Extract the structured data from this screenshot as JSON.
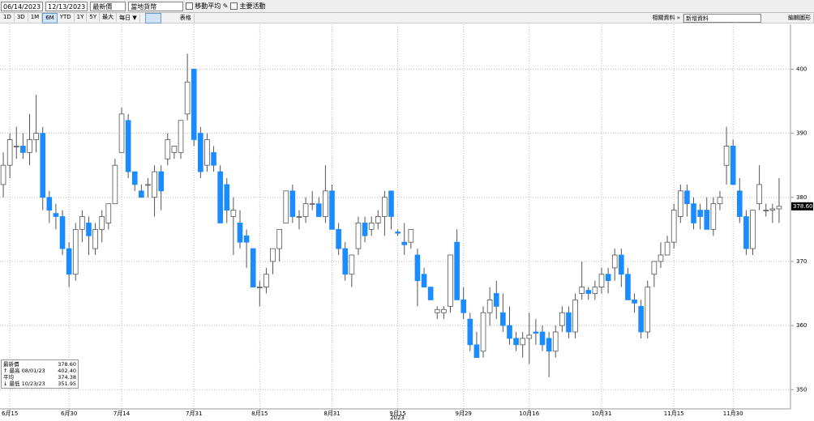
{
  "toolbar": {
    "start_date": "06/14/2023",
    "end_date": "12/13/2023",
    "field": "最新價",
    "currency": "當地貨幣",
    "options": [
      "移動平均",
      "主要活動"
    ],
    "periods": [
      "1D",
      "3D",
      "1M",
      "6M",
      "YTD",
      "1Y",
      "5Y",
      "最大"
    ],
    "frequency": "每日 ▼",
    "table": "表格",
    "related": "相關資料 »",
    "add_data": "新增資料",
    "edit": "編輯圖形"
  },
  "chart_data": {
    "type": "candlestick",
    "up_color": "#ffffff",
    "down_color": "#1a8cff",
    "grid": true,
    "ylim": [
      347,
      407
    ],
    "yticks": [
      350,
      360,
      370,
      380,
      390,
      400
    ],
    "xlim": [
      -0.5,
      118.5
    ],
    "xticks": [
      {
        "value": 1,
        "label": "6月15"
      },
      {
        "value": 10,
        "label": "6月30"
      },
      {
        "value": 18,
        "label": "7月14"
      },
      {
        "value": 29,
        "label": "7月31"
      },
      {
        "value": 39,
        "label": "8月15"
      },
      {
        "value": 50,
        "label": "8月31"
      },
      {
        "value": 60,
        "label": "9月15"
      },
      {
        "value": 70,
        "label": "9月29"
      },
      {
        "value": 80,
        "label": "10月16"
      },
      {
        "value": 91,
        "label": "10月31"
      },
      {
        "value": 102,
        "label": "11月15"
      },
      {
        "value": 111,
        "label": "11月30"
      }
    ],
    "year_label": "2023",
    "last_label": "378.60",
    "legend": [
      {
        "label": "最新價",
        "value": "378.60"
      },
      {
        "label": "↑ 最高 08/01/23",
        "value": "402.40"
      },
      {
        "label": "平均",
        "value": "374.38"
      },
      {
        "label": "↓ 最低 10/23/23",
        "value": "351.95"
      }
    ],
    "candles": [
      [
        382,
        387,
        380,
        385
      ],
      [
        385,
        390,
        383,
        389
      ],
      [
        388,
        391,
        386,
        388
      ],
      [
        388,
        390,
        386,
        387
      ],
      [
        387,
        393,
        385,
        389
      ],
      [
        389,
        396,
        387,
        390
      ],
      [
        390,
        391,
        378,
        380
      ],
      [
        380,
        381,
        376,
        378
      ],
      [
        377.5,
        379,
        375,
        377
      ],
      [
        377,
        378,
        371,
        372
      ],
      [
        372,
        373,
        366,
        368
      ],
      [
        368,
        376,
        367,
        375
      ],
      [
        375,
        378,
        373,
        377
      ],
      [
        376,
        377,
        371,
        374
      ],
      [
        372,
        376,
        371,
        375
      ],
      [
        375,
        378,
        373,
        377
      ],
      [
        376,
        379,
        375,
        379
      ],
      [
        379,
        386,
        379,
        385
      ],
      [
        387,
        394,
        387,
        393
      ],
      [
        392,
        393,
        383,
        384
      ],
      [
        384,
        384,
        381,
        382
      ],
      [
        381,
        382,
        380,
        380
      ],
      [
        382,
        383,
        380,
        382
      ],
      [
        380,
        385,
        377,
        384
      ],
      [
        384,
        385,
        378,
        381
      ],
      [
        386,
        390,
        385,
        389
      ],
      [
        387,
        388,
        386,
        388
      ],
      [
        387,
        392,
        386,
        392
      ],
      [
        393,
        402.4,
        392,
        398
      ],
      [
        400,
        400,
        388,
        389
      ],
      [
        390,
        391,
        383,
        384
      ],
      [
        385,
        390,
        384,
        389
      ],
      [
        387,
        388,
        384,
        385
      ],
      [
        384,
        385,
        376,
        376
      ],
      [
        382,
        383,
        376,
        378
      ],
      [
        377,
        380,
        371,
        378
      ],
      [
        376,
        378,
        372,
        373
      ],
      [
        374,
        375,
        369,
        373
      ],
      [
        372,
        372,
        366,
        366
      ],
      [
        366,
        367,
        363,
        366
      ],
      [
        366,
        369,
        365,
        368
      ],
      [
        370,
        372,
        368,
        372
      ],
      [
        372,
        375,
        370,
        375
      ],
      [
        376,
        381,
        376,
        381
      ],
      [
        381,
        382,
        376,
        377
      ],
      [
        377,
        378,
        375,
        377
      ],
      [
        377,
        380,
        376,
        379
      ],
      [
        379,
        381,
        378,
        379
      ],
      [
        379,
        380,
        377,
        377
      ],
      [
        377,
        385,
        376,
        381
      ],
      [
        381,
        382,
        375,
        375
      ],
      [
        375,
        376,
        371,
        372
      ],
      [
        372,
        373,
        367,
        368
      ],
      [
        368,
        371,
        366,
        371
      ],
      [
        372,
        377,
        371,
        376
      ],
      [
        376,
        377,
        373,
        374
      ],
      [
        375,
        377,
        374,
        376
      ],
      [
        376,
        378,
        375,
        377
      ],
      [
        377,
        381,
        374,
        380
      ],
      [
        381,
        381,
        375,
        377
      ],
      [
        374.6,
        375,
        374,
        374.4
      ],
      [
        373,
        376,
        371,
        372.6
      ],
      [
        373,
        375,
        372,
        375
      ],
      [
        371,
        372,
        363,
        367
      ],
      [
        368,
        369,
        366,
        366
      ],
      [
        366,
        366,
        364,
        364
      ],
      [
        362,
        363,
        361,
        362.5
      ],
      [
        362,
        363,
        361,
        362.5
      ],
      [
        363,
        371,
        362,
        371
      ],
      [
        373,
        375,
        364,
        364
      ],
      [
        364,
        366,
        361,
        362
      ],
      [
        361,
        362,
        356,
        357
      ],
      [
        357,
        359,
        355,
        355
      ],
      [
        356,
        363,
        355,
        362
      ],
      [
        362,
        366,
        360,
        364
      ],
      [
        365,
        367,
        361,
        363
      ],
      [
        362,
        365,
        359,
        360
      ],
      [
        360,
        363,
        357,
        358
      ],
      [
        358,
        359,
        356,
        357
      ],
      [
        357,
        359,
        355,
        358
      ],
      [
        358,
        362,
        354,
        358.5
      ],
      [
        359,
        361,
        357,
        358.8
      ],
      [
        359,
        360,
        356,
        357
      ],
      [
        358,
        359,
        351.95,
        356
      ],
      [
        356,
        360,
        355,
        359
      ],
      [
        360,
        363,
        359,
        362
      ],
      [
        362,
        363,
        358,
        359
      ],
      [
        359,
        365,
        358,
        364
      ],
      [
        365,
        370,
        364,
        366
      ],
      [
        365.5,
        366,
        364,
        365
      ],
      [
        365,
        367,
        364,
        366
      ],
      [
        366,
        369,
        365,
        368
      ],
      [
        368,
        369,
        365,
        367
      ],
      [
        369,
        372,
        367,
        371
      ],
      [
        371,
        372,
        366,
        368
      ],
      [
        368,
        369,
        364,
        364
      ],
      [
        364,
        365,
        362,
        363.5
      ],
      [
        363,
        364,
        358,
        359
      ],
      [
        359,
        367,
        358,
        366
      ],
      [
        368,
        370,
        366,
        370
      ],
      [
        370,
        373,
        369,
        371
      ],
      [
        371,
        374,
        371,
        373
      ],
      [
        373,
        379,
        372,
        378
      ],
      [
        377,
        382,
        376,
        381
      ],
      [
        381,
        382,
        377,
        379
      ],
      [
        379,
        380,
        375,
        376
      ],
      [
        378,
        379,
        375,
        377
      ],
      [
        378,
        380,
        375,
        375
      ],
      [
        375,
        380,
        374,
        379
      ],
      [
        379,
        381,
        378,
        380
      ],
      [
        385,
        391,
        382,
        388
      ],
      [
        388,
        389,
        382,
        382
      ],
      [
        381,
        383,
        376,
        377
      ],
      [
        377,
        378,
        371,
        372
      ],
      [
        372,
        378,
        371,
        378
      ],
      [
        379,
        385,
        378,
        382
      ],
      [
        378,
        379,
        377,
        378
      ],
      [
        378,
        379,
        376,
        378.2
      ],
      [
        378.2,
        383,
        376,
        378.6
      ]
    ]
  }
}
